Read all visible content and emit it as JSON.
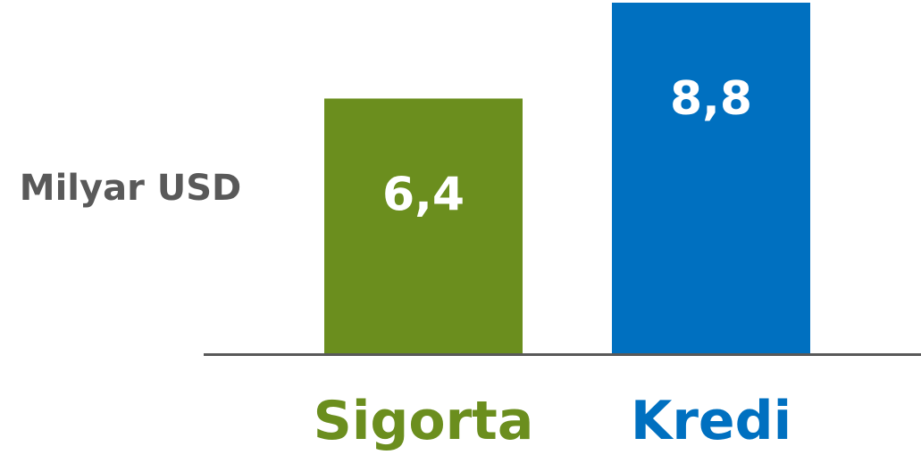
{
  "chart_data": {
    "type": "bar",
    "categories": [
      "Sigorta",
      "Kredi"
    ],
    "values": [
      6.4,
      8.8
    ],
    "value_labels": [
      "6,4",
      "8,8"
    ],
    "ylabel": "Milyar USD",
    "ylim": [
      0,
      8.8
    ],
    "grid": false,
    "legend": "none",
    "colors": [
      "#6B8E1E",
      "#0070C0"
    ]
  },
  "colors": {
    "axis": "#595959",
    "ylabel": "#595959"
  }
}
